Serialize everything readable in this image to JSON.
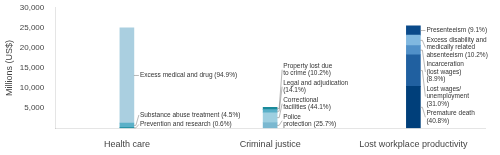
{
  "chart_data": {
    "type": "bar",
    "stacked": true,
    "categories": [
      "Health care",
      "Criminal justice",
      "Lost workplace productivity"
    ],
    "ylabel": "Millions (US$)",
    "ylim": [
      0,
      30000
    ],
    "yticks": [
      {
        "value": 5000,
        "label": "5,000"
      },
      {
        "value": 10000,
        "label": "10,000"
      },
      {
        "value": 15000,
        "label": "15,000"
      },
      {
        "value": 20000,
        "label": "20,000"
      },
      {
        "value": 25000,
        "label": "25,000"
      },
      {
        "value": 30000,
        "label": "30,000"
      }
    ],
    "grid": false,
    "series": [
      {
        "name": "Prevention and research (0.6%)",
        "color": "#1a8a9a",
        "values": [
          150,
          null,
          null
        ]
      },
      {
        "name": "Substance abuse treatment (4.5%)",
        "color": "#5ab0c8",
        "values": [
          1125,
          null,
          null
        ]
      },
      {
        "name": "Excess medical and drug (94.9%)",
        "color": "#aacfe0",
        "values": [
          23725,
          null,
          null
        ]
      },
      {
        "name": "Police\nprotection (25.7%)",
        "color": "#7ab8d0",
        "values": [
          null,
          1413,
          null
        ]
      },
      {
        "name": "Correctional\nfacilities (44.1%)",
        "color": "#9ecfe0",
        "values": [
          null,
          2426,
          null
        ]
      },
      {
        "name": "Legal and adjudication\n(14.1%)",
        "color": "#5ab0c8",
        "values": [
          null,
          776,
          null
        ]
      },
      {
        "name": "Property lost due\nto crime (10.2%)",
        "color": "#1a8a9a",
        "values": [
          null,
          561,
          null
        ]
      },
      {
        "name": "Premature death\n(40.8%)",
        "color": "#003f7a",
        "values": [
          null,
          null,
          10404
        ]
      },
      {
        "name": "Lost wages/\nunemployment\n(31.0%)",
        "color": "#2060a0",
        "values": [
          null,
          null,
          7905
        ]
      },
      {
        "name": "Incarceration\n(lost wages)\n(8.9%)",
        "color": "#5090c8",
        "values": [
          null,
          null,
          2270
        ]
      },
      {
        "name": "Excess disability and\nmedically related\nabsenteeism (10.2%)",
        "color": "#80b8e0",
        "values": [
          null,
          null,
          2601
        ]
      },
      {
        "name": "Presenteeism (9.1%)",
        "color": "#0a4a8a",
        "values": [
          null,
          null,
          2320
        ]
      }
    ]
  }
}
